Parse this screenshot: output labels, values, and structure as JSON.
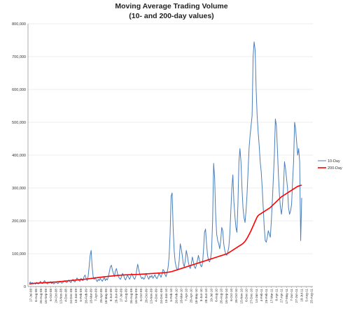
{
  "chart_data": {
    "type": "line",
    "title": "Moving Average Trading Volume",
    "subtitle": "(10- and 200-day values)",
    "xlabel": "",
    "ylabel": "",
    "ylim": [
      0,
      800000
    ],
    "yticks": [
      0,
      100000,
      200000,
      300000,
      400000,
      500000,
      600000,
      700000,
      800000
    ],
    "ytick_labels": [
      "0",
      "100,000",
      "200,000",
      "300,000",
      "400,000",
      "500,000",
      "600,000",
      "700,000",
      "800,000"
    ],
    "x_tick_labels": [
      "17-Jul-08",
      "6-Aug-08",
      "26-Aug-08",
      "16-Sep-08",
      "6-Oct-08",
      "24-Oct-08",
      "13-Nov-08",
      "4-Dec-08",
      "24-Dec-08",
      "15-Jan-09",
      "5-Feb-09",
      "26-Feb-09",
      "18-Mar-09",
      "7-Apr-09",
      "28-Apr-09",
      "18-May-09",
      "8-Jun-09",
      "26-Jun-09",
      "17-Jul-09",
      "6-Aug-09",
      "26-Aug-09",
      "16-Sep-09",
      "6-Oct-09",
      "26-Oct-09",
      "13-Nov-09",
      "4-Dec-09",
      "24-Dec-09",
      "15-Jan-10",
      "5-Feb-10",
      "26-Feb-10",
      "18-Mar-10",
      "7-Apr-10",
      "28-Apr-10",
      "18-May-10",
      "8-Jun-10",
      "28-Jun-10",
      "19-Jul-10",
      "6-Aug-10",
      "26-Aug-10",
      "16-Sep-10",
      "6-Oct-10",
      "26-Oct-10",
      "15-Nov-10",
      "6-Dec-10",
      "27-Dec-10",
      "14-Jan-11",
      "4-Feb-11",
      "25-Feb-11",
      "17-Mar-11",
      "6-Apr-11",
      "27-Apr-11",
      "17-May-11",
      "7-Jun-11",
      "27-Jun-11",
      "18-Jul-11",
      "5-Aug-11",
      "25-Aug-11"
    ],
    "grid": true,
    "legend_position": "right",
    "series": [
      {
        "name": "10-Day",
        "color": "#4a7ebb",
        "values": [
          10000,
          14000,
          9000,
          12000,
          8000,
          11000,
          7000,
          13000,
          9000,
          8000,
          12000,
          16000,
          10000,
          9000,
          14000,
          18000,
          12000,
          10000,
          8000,
          13000,
          11000,
          15000,
          9000,
          12000,
          8000,
          10000,
          14000,
          12000,
          9000,
          11000,
          16000,
          13000,
          10000,
          12000,
          15000,
          18000,
          14000,
          12000,
          16000,
          20000,
          15000,
          12000,
          18000,
          22000,
          16000,
          14000,
          20000,
          26000,
          22000,
          18000,
          16000,
          25000,
          20000,
          18000,
          30000,
          35000,
          26000,
          18000,
          30000,
          60000,
          95000,
          110000,
          60000,
          30000,
          22000,
          28000,
          20000,
          15000,
          22000,
          18000,
          25000,
          20000,
          16000,
          22000,
          28000,
          18000,
          24000,
          20000,
          30000,
          45000,
          60000,
          65000,
          50000,
          40000,
          30000,
          48000,
          55000,
          40000,
          30000,
          25000,
          22000,
          30000,
          40000,
          35000,
          25000,
          20000,
          28000,
          35000,
          28000,
          22000,
          30000,
          40000,
          34000,
          26000,
          22000,
          30000,
          50000,
          68000,
          52000,
          38000,
          30000,
          24000,
          28000,
          22000,
          26000,
          40000,
          35000,
          28000,
          22000,
          32000,
          28000,
          34000,
          25000,
          30000,
          36000,
          28000,
          24000,
          30000,
          40000,
          35000,
          28000,
          38000,
          52000,
          48000,
          36000,
          30000,
          42000,
          58000,
          90000,
          160000,
          275000,
          285000,
          180000,
          110000,
          75000,
          60000,
          50000,
          55000,
          80000,
          130000,
          115000,
          95000,
          70000,
          60000,
          80000,
          110000,
          95000,
          75000,
          60000,
          55000,
          70000,
          90000,
          75000,
          60000,
          55000,
          65000,
          80000,
          95000,
          80000,
          65000,
          60000,
          70000,
          110000,
          165000,
          175000,
          130000,
          95000,
          80000,
          75000,
          85000,
          110000,
          200000,
          375000,
          330000,
          220000,
          160000,
          140000,
          130000,
          115000,
          140000,
          180000,
          170000,
          130000,
          110000,
          100000,
          95000,
          105000,
          120000,
          160000,
          230000,
          300000,
          340000,
          260000,
          215000,
          180000,
          165000,
          250000,
          380000,
          420000,
          380000,
          300000,
          240000,
          210000,
          195000,
          230000,
          280000,
          350000,
          420000,
          460000,
          490000,
          520000,
          700000,
          745000,
          720000,
          600000,
          520000,
          470000,
          430000,
          380000,
          350000,
          300000,
          240000,
          180000,
          140000,
          135000,
          150000,
          170000,
          160000,
          150000,
          200000,
          260000,
          330000,
          400000,
          510000,
          490000,
          420000,
          340000,
          280000,
          240000,
          220000,
          250000,
          300000,
          380000,
          360000,
          330000,
          300000,
          240000,
          220000,
          230000,
          250000,
          320000,
          380000,
          500000,
          480000,
          440000,
          400000,
          420000,
          380000,
          140000,
          270000
        ]
      },
      {
        "name": "200-Day",
        "color": "#ff0000",
        "values": [
          8000,
          8400,
          8800,
          9200,
          9500,
          9800,
          10000,
          10200,
          10400,
          10600,
          10800,
          11000,
          11200,
          11400,
          11600,
          11800,
          12000,
          12200,
          12400,
          12600,
          12800,
          13000,
          13200,
          13400,
          13600,
          13800,
          14000,
          14200,
          14500,
          14800,
          15100,
          15400,
          15700,
          16000,
          16300,
          16600,
          16900,
          17200,
          17500,
          17800,
          18100,
          18400,
          18700,
          19000,
          19300,
          19600,
          19900,
          20200,
          20500,
          20800,
          21100,
          21400,
          21700,
          22000,
          22300,
          22600,
          22900,
          23200,
          23600,
          24000,
          24400,
          24800,
          25200,
          25600,
          26000,
          26400,
          26800,
          27200,
          27600,
          28000,
          28400,
          28800,
          29200,
          29600,
          30000,
          30300,
          30600,
          30900,
          31200,
          31500,
          31800,
          32100,
          32400,
          32700,
          33000,
          33300,
          33600,
          33900,
          34200,
          34500,
          34700,
          34900,
          35100,
          35300,
          35500,
          35700,
          35900,
          36000,
          36100,
          36200,
          36300,
          36400,
          36500,
          36600,
          36700,
          36800,
          36900,
          37000,
          37200,
          37400,
          37600,
          37800,
          38000,
          38200,
          38400,
          38600,
          38800,
          39000,
          39200,
          39400,
          39600,
          39800,
          40000,
          40200,
          40400,
          40600,
          40800,
          41000,
          41200,
          41400,
          41600,
          41800,
          42000,
          42400,
          42800,
          43200,
          43600,
          44000,
          44600,
          45200,
          46000,
          47000,
          48000,
          49000,
          50000,
          51000,
          52000,
          53000,
          54000,
          55000,
          56000,
          57000,
          58000,
          59000,
          60000,
          61000,
          62000,
          63000,
          64000,
          65000,
          66000,
          67000,
          68000,
          69000,
          70000,
          71000,
          72000,
          73000,
          74000,
          75000,
          76000,
          77000,
          78000,
          79000,
          80000,
          81000,
          82000,
          83000,
          84000,
          85000,
          86000,
          87000,
          88000,
          89000,
          90000,
          91000,
          92000,
          93000,
          94000,
          95000,
          96000,
          97000,
          98000,
          99000,
          100000,
          102000,
          104000,
          106000,
          108000,
          110000,
          112000,
          114000,
          116000,
          118000,
          120000,
          122000,
          124000,
          126000,
          128000,
          130000,
          133000,
          136000,
          140000,
          145000,
          150000,
          156000,
          162000,
          168000,
          175000,
          182000,
          189000,
          196000,
          203000,
          210000,
          215000,
          218000,
          220000,
          222000,
          224000,
          226000,
          228000,
          230000,
          232000,
          234000,
          236000,
          238000,
          240000,
          243000,
          246000,
          249000,
          252000,
          255000,
          258000,
          261000,
          264000,
          267000,
          270000,
          273000,
          275000,
          277000,
          279000,
          281000,
          283000,
          285000,
          287000,
          289000,
          291000,
          293000,
          295000,
          297000,
          299000,
          301000,
          303000,
          305000,
          306000,
          307000,
          308000,
          308500
        ]
      }
    ]
  }
}
